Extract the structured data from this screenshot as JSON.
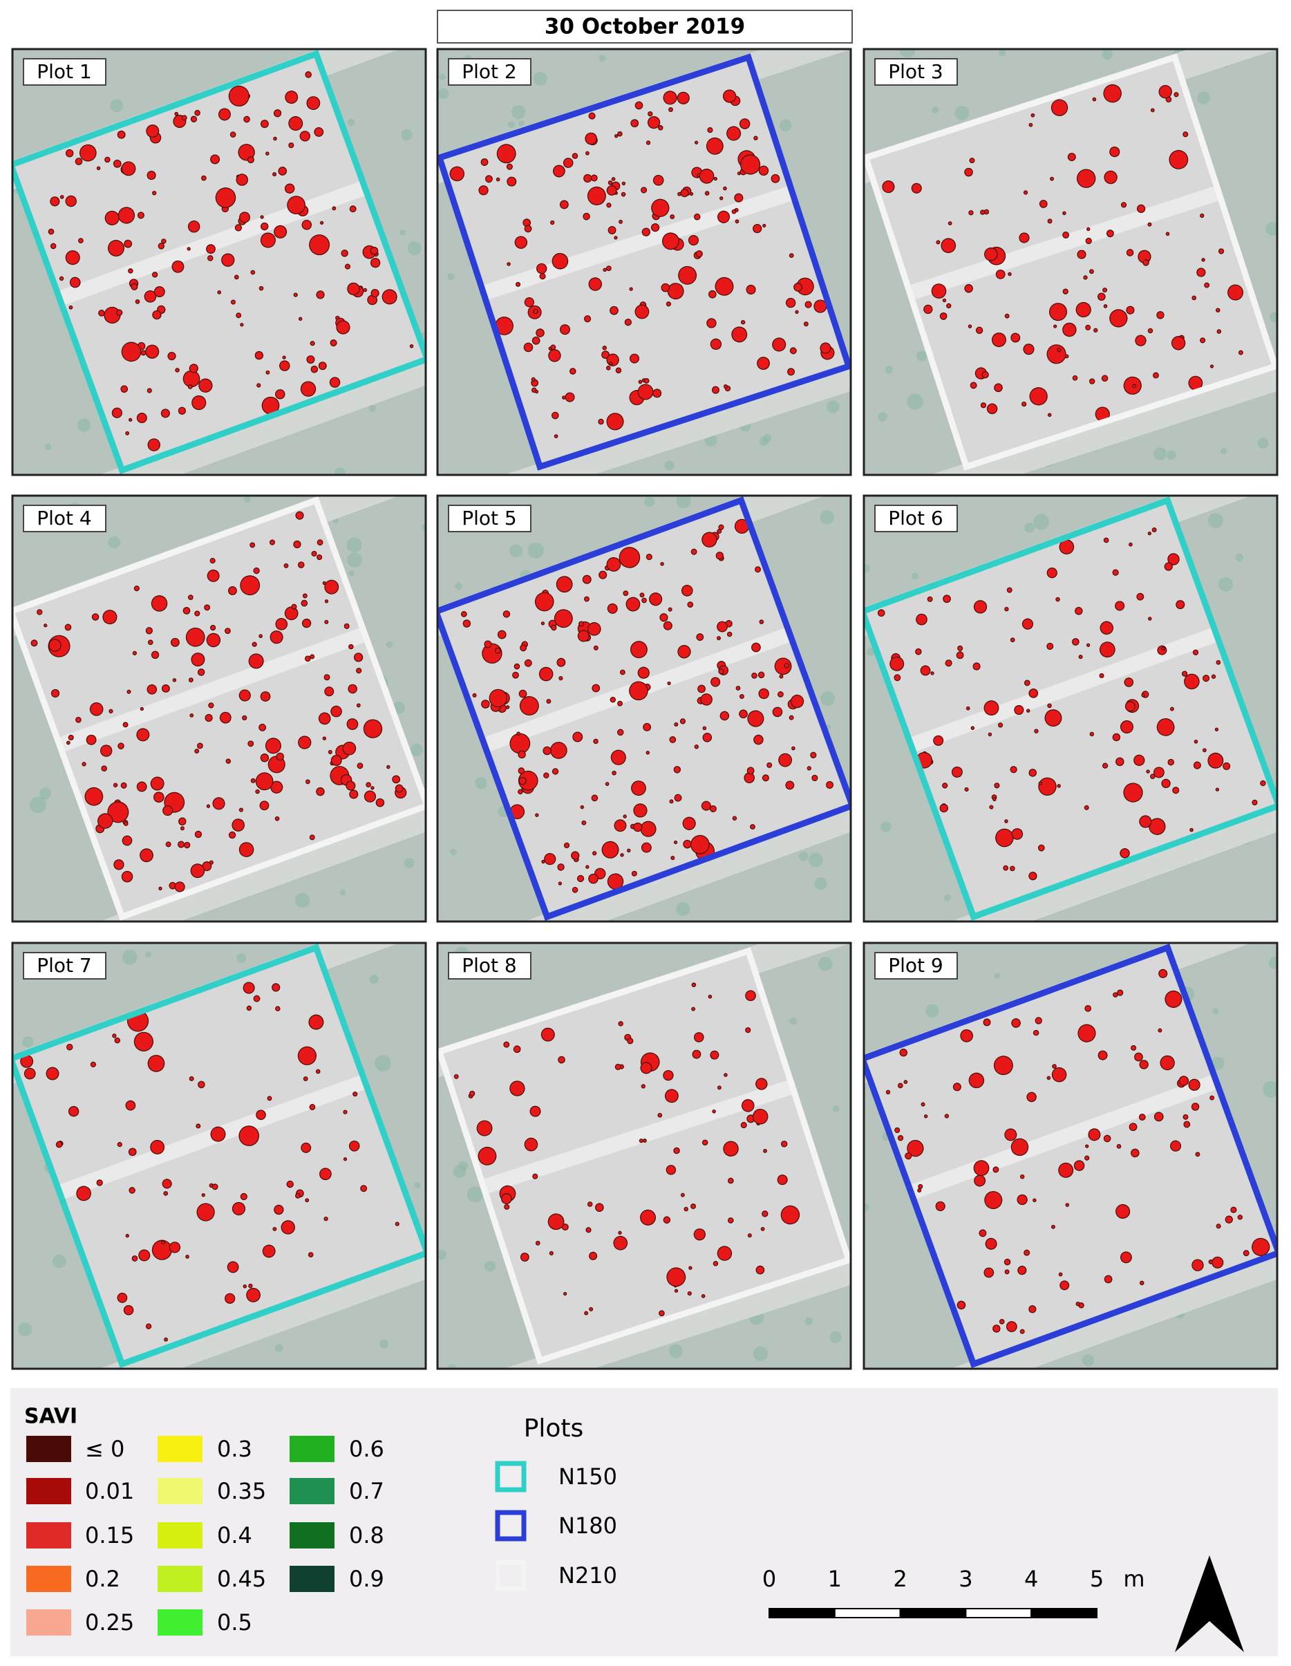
{
  "title": "30 October 2019",
  "plots": [
    {
      "label": "Plot 1",
      "group": "N150"
    },
    {
      "label": "Plot 2",
      "group": "N180"
    },
    {
      "label": "Plot 3",
      "group": "N210"
    },
    {
      "label": "Plot 4",
      "group": "N210"
    },
    {
      "label": "Plot 5",
      "group": "N180"
    },
    {
      "label": "Plot 6",
      "group": "N150"
    },
    {
      "label": "Plot 7",
      "group": "N150"
    },
    {
      "label": "Plot 8",
      "group": "N210"
    },
    {
      "label": "Plot 9",
      "group": "N180"
    }
  ],
  "savi_legend": {
    "title": "SAVI",
    "entries": [
      {
        "label": "≤ 0",
        "color": "#4a0a05"
      },
      {
        "label": "0.01",
        "color": "#a80a0a"
      },
      {
        "label": "0.15",
        "color": "#e02a2a"
      },
      {
        "label": "0.2",
        "color": "#f86a20"
      },
      {
        "label": "0.25",
        "color": "#f8a890"
      },
      {
        "label": "0.3",
        "color": "#f8f010"
      },
      {
        "label": "0.35",
        "color": "#f0f870"
      },
      {
        "label": "0.4",
        "color": "#d8f010"
      },
      {
        "label": "0.45",
        "color": "#c0f020"
      },
      {
        "label": "0.5",
        "color": "#40f030"
      },
      {
        "label": "0.6",
        "color": "#20b020"
      },
      {
        "label": "0.7",
        "color": "#209050"
      },
      {
        "label": "0.8",
        "color": "#107020"
      },
      {
        "label": "0.9",
        "color": "#104030"
      }
    ]
  },
  "plots_legend": {
    "title": "Plots",
    "entries": [
      {
        "name": "N150",
        "color": "#30d0c8"
      },
      {
        "name": "N180",
        "color": "#2b3fd8"
      },
      {
        "name": "N210",
        "color": "#f4f4f4"
      }
    ]
  },
  "scale_bar": {
    "ticks": [
      0,
      1,
      2,
      3,
      4,
      5
    ],
    "unit": "m"
  }
}
